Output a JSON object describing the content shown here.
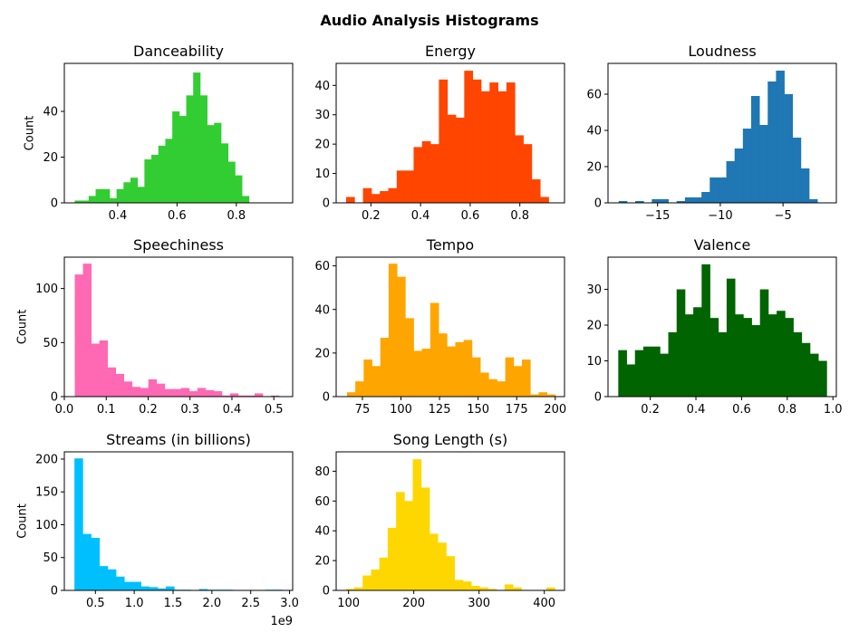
{
  "figure": {
    "title": "Audio Analysis Histograms"
  },
  "chart_data": [
    {
      "type": "bar",
      "title": "Danceability",
      "ylabel": "Count",
      "xlabel": "",
      "color": "#32cd32",
      "bin_start": 0.255,
      "bin_width": 0.0235,
      "counts": [
        1,
        1,
        3,
        6,
        6,
        2,
        6,
        9,
        11,
        7,
        19,
        21,
        25,
        28,
        40,
        38,
        47,
        57,
        47,
        34,
        35,
        26,
        18,
        12,
        3
      ],
      "xlim": [
        0.22,
        0.99
      ],
      "ylim": [
        0,
        61
      ],
      "xticks": [
        0.4,
        0.6,
        0.8
      ],
      "xtick_labels": [
        "0.4",
        "0.6",
        "0.8"
      ],
      "yticks": [
        0,
        20,
        40
      ],
      "ytick_labels": [
        "0",
        "20",
        "40"
      ]
    },
    {
      "type": "bar",
      "title": "Energy",
      "ylabel": "",
      "xlabel": "",
      "color": "#ff4500",
      "bin_start": 0.1,
      "bin_width": 0.034,
      "counts": [
        2,
        0,
        5,
        3,
        4,
        5,
        11,
        11,
        19,
        21,
        20,
        42,
        30,
        29,
        45,
        42,
        38,
        41,
        38,
        41,
        23,
        20,
        8,
        2
      ],
      "xlim": [
        0.06,
        0.98
      ],
      "ylim": [
        0,
        47.5
      ],
      "xticks": [
        0.2,
        0.4,
        0.6,
        0.8
      ],
      "xtick_labels": [
        "0.2",
        "0.4",
        "0.6",
        "0.8"
      ],
      "yticks": [
        0,
        10,
        20,
        30,
        40
      ],
      "ytick_labels": [
        "0",
        "10",
        "20",
        "30",
        "40"
      ]
    },
    {
      "type": "bar",
      "title": "Loudness",
      "ylabel": "",
      "xlabel": "",
      "color": "#1f77b4",
      "bin_start": -18.1,
      "bin_width": 0.66,
      "counts": [
        1,
        0,
        1,
        0,
        2,
        2,
        0,
        1,
        3,
        3,
        6,
        14,
        14,
        23,
        30,
        41,
        59,
        43,
        67,
        73,
        60,
        36,
        19,
        2
      ],
      "xlim": [
        -18.95,
        -0.75
      ],
      "ylim": [
        0,
        77
      ],
      "xticks": [
        -15,
        -10,
        -5
      ],
      "xtick_labels": [
        "−15",
        "−10",
        "−5"
      ],
      "yticks": [
        0,
        20,
        40,
        60
      ],
      "ytick_labels": [
        "0",
        "20",
        "40",
        "60"
      ]
    },
    {
      "type": "bar",
      "title": "Speechiness",
      "ylabel": "Count",
      "xlabel": "",
      "color": "#ff69b4",
      "bin_start": 0.025,
      "bin_width": 0.0195,
      "counts": [
        113,
        123,
        49,
        52,
        27,
        21,
        14,
        9,
        8,
        16,
        12,
        7,
        7,
        8,
        5,
        8,
        6,
        5,
        1,
        3,
        1,
        1,
        3,
        0,
        1
      ],
      "xlim": [
        0.0,
        0.545
      ],
      "ylim": [
        0,
        129
      ],
      "xticks": [
        0.0,
        0.1,
        0.2,
        0.3,
        0.4,
        0.5
      ],
      "xtick_labels": [
        "0.0",
        "0.1",
        "0.2",
        "0.3",
        "0.4",
        "0.5"
      ],
      "yticks": [
        0,
        50,
        100
      ],
      "ytick_labels": [
        "0",
        "50",
        "100"
      ]
    },
    {
      "type": "bar",
      "title": "Tempo",
      "ylabel": "",
      "xlabel": "",
      "color": "#ffa500",
      "bin_start": 65,
      "bin_width": 5.4,
      "counts": [
        2,
        7,
        17,
        14,
        27,
        61,
        55,
        36,
        21,
        22,
        43,
        29,
        23,
        25,
        26,
        18,
        11,
        8,
        7,
        18,
        14,
        17,
        1,
        2,
        1
      ],
      "xlim": [
        58,
        206
      ],
      "ylim": [
        0,
        64
      ],
      "xticks": [
        75,
        100,
        125,
        150,
        175,
        200
      ],
      "xtick_labels": [
        "75",
        "100",
        "125",
        "150",
        "175",
        "200"
      ],
      "yticks": [
        0,
        20,
        40,
        60
      ],
      "ytick_labels": [
        "0",
        "20",
        "40",
        "60"
      ]
    },
    {
      "type": "bar",
      "title": "Valence",
      "ylabel": "",
      "xlabel": "",
      "color": "#006400",
      "bin_start": 0.06,
      "bin_width": 0.0365,
      "counts": [
        13,
        9,
        13,
        14,
        14,
        12,
        18,
        30,
        23,
        25,
        37,
        22,
        18,
        33,
        23,
        22,
        20,
        30,
        23,
        24,
        22,
        18,
        15,
        12,
        10
      ],
      "xlim": [
        0.015,
        1.015
      ],
      "ylim": [
        0,
        39
      ],
      "xticks": [
        0.2,
        0.4,
        0.6,
        0.8,
        1.0
      ],
      "xtick_labels": [
        "0.2",
        "0.4",
        "0.6",
        "0.8",
        "1.0"
      ],
      "yticks": [
        0,
        10,
        20,
        30
      ],
      "ytick_labels": [
        "0",
        "10",
        "20",
        "30"
      ]
    },
    {
      "type": "bar",
      "title": "Streams (in billions)",
      "ylabel": "Count",
      "xlabel": "",
      "offset_label": "1e9",
      "color": "#00bfff",
      "bin_start": 0.23,
      "bin_width": 0.107,
      "counts": [
        201,
        86,
        80,
        37,
        32,
        21,
        13,
        13,
        6,
        5,
        3,
        6,
        1,
        1,
        0,
        2,
        1,
        1,
        1,
        0,
        0,
        0,
        0,
        1,
        1
      ],
      "xlim": [
        0.1,
        3.04
      ],
      "ylim": [
        0,
        211
      ],
      "xticks": [
        0.5,
        1.0,
        1.5,
        2.0,
        2.5,
        3.0
      ],
      "xtick_labels": [
        "0.5",
        "1.0",
        "1.5",
        "2.0",
        "2.5",
        "3.0"
      ],
      "yticks": [
        0,
        50,
        100,
        150,
        200
      ],
      "ytick_labels": [
        "0",
        "50",
        "100",
        "150",
        "200"
      ]
    },
    {
      "type": "bar",
      "title": "Song Length (s)",
      "ylabel": "",
      "xlabel": "",
      "color": "#ffd700",
      "bin_start": 96,
      "bin_width": 12.8,
      "counts": [
        1,
        2,
        10,
        14,
        22,
        42,
        66,
        60,
        88,
        69,
        38,
        32,
        23,
        7,
        6,
        3,
        2,
        1,
        0,
        4,
        2,
        0,
        0,
        0,
        2
      ],
      "xlim": [
        81,
        431
      ],
      "ylim": [
        0,
        93
      ],
      "xticks": [
        100,
        200,
        300,
        400
      ],
      "xtick_labels": [
        "100",
        "200",
        "300",
        "400"
      ],
      "yticks": [
        0,
        20,
        40,
        60,
        80
      ],
      "ytick_labels": [
        "0",
        "20",
        "40",
        "60",
        "80"
      ]
    }
  ]
}
